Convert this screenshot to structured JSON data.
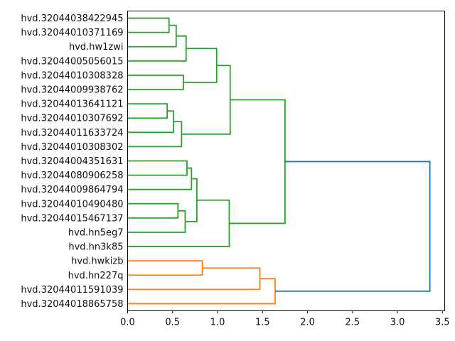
{
  "figure": {
    "background": "#ffffff",
    "title": ""
  },
  "chart_data": {
    "type": "dendrogram",
    "orientation": "horizontal, leaves on left, root on right",
    "title": "",
    "xlabel": "",
    "ylabel": "",
    "grid": false,
    "legend": null,
    "x_axis": {
      "tick_values": [
        0.0,
        0.5,
        1.0,
        1.5,
        2.0,
        2.5,
        3.0,
        3.5
      ],
      "tick_labels": [
        "0.0",
        "0.5",
        "1.0",
        "1.5",
        "2.0",
        "2.5",
        "3.0",
        "3.5"
      ],
      "range": [
        0.0,
        3.525
      ]
    },
    "colors": {
      "cluster_green": "#2ca02c",
      "cluster_orange": "#ff7f0e",
      "root_blue": "#1f77b4",
      "frame": "#000000",
      "text": "#111111"
    },
    "leaves": [
      "hvd.32044038422945",
      "hvd.32044010371169",
      "hvd.hw1zwi",
      "hvd.32044005056015",
      "hvd.32044010308328",
      "hvd.32044009938762",
      "hvd.32044013641121",
      "hvd.32044010307692",
      "hvd.32044011633724",
      "hvd.32044010308302",
      "hvd.32044004351631",
      "hvd.32044080906258",
      "hvd.32044009864794",
      "hvd.32044010490480",
      "hvd.32044015467137",
      "hvd.hn5eg7",
      "hvd.hn3k85",
      "hvd.hwkizb",
      "hvd.hn227q",
      "hvd.32044011591039",
      "hvd.32044018865758"
    ],
    "links": [
      {
        "id": "gA",
        "children": [
          "leaf-0",
          "leaf-1"
        ],
        "distance": 0.46,
        "color": "#2ca02c"
      },
      {
        "id": "gB",
        "children": [
          "gA",
          "leaf-2"
        ],
        "distance": 0.54,
        "color": "#2ca02c"
      },
      {
        "id": "gC",
        "children": [
          "gB",
          "leaf-3"
        ],
        "distance": 0.65,
        "color": "#2ca02c"
      },
      {
        "id": "gD",
        "children": [
          "leaf-4",
          "leaf-5"
        ],
        "distance": 0.62,
        "color": "#2ca02c"
      },
      {
        "id": "gE",
        "children": [
          "gC",
          "gD"
        ],
        "distance": 0.99,
        "color": "#2ca02c"
      },
      {
        "id": "gF",
        "children": [
          "leaf-6",
          "leaf-7"
        ],
        "distance": 0.44,
        "color": "#2ca02c"
      },
      {
        "id": "gG",
        "children": [
          "gF",
          "leaf-8"
        ],
        "distance": 0.51,
        "color": "#2ca02c"
      },
      {
        "id": "gH",
        "children": [
          "gG",
          "leaf-9"
        ],
        "distance": 0.6,
        "color": "#2ca02c"
      },
      {
        "id": "gI",
        "children": [
          "gE",
          "gH"
        ],
        "distance": 1.14,
        "color": "#2ca02c"
      },
      {
        "id": "gJ",
        "children": [
          "leaf-10",
          "leaf-11"
        ],
        "distance": 0.66,
        "color": "#2ca02c"
      },
      {
        "id": "gK",
        "children": [
          "gJ",
          "leaf-12"
        ],
        "distance": 0.71,
        "color": "#2ca02c"
      },
      {
        "id": "gL",
        "children": [
          "leaf-13",
          "leaf-14"
        ],
        "distance": 0.56,
        "color": "#2ca02c"
      },
      {
        "id": "gM",
        "children": [
          "gL",
          "leaf-15"
        ],
        "distance": 0.64,
        "color": "#2ca02c"
      },
      {
        "id": "gN",
        "children": [
          "gK",
          "gM"
        ],
        "distance": 0.77,
        "color": "#2ca02c"
      },
      {
        "id": "gO",
        "children": [
          "gN",
          "leaf-16"
        ],
        "distance": 1.13,
        "color": "#2ca02c"
      },
      {
        "id": "gP",
        "children": [
          "gI",
          "gO"
        ],
        "distance": 1.75,
        "color": "#2ca02c"
      },
      {
        "id": "oQ",
        "children": [
          "leaf-17",
          "leaf-18"
        ],
        "distance": 0.83,
        "color": "#ff7f0e"
      },
      {
        "id": "oR",
        "children": [
          "oQ",
          "leaf-19"
        ],
        "distance": 1.47,
        "color": "#ff7f0e"
      },
      {
        "id": "oS",
        "children": [
          "oR",
          "leaf-20"
        ],
        "distance": 1.64,
        "color": "#ff7f0e"
      },
      {
        "id": "root",
        "children": [
          "gP",
          "oS"
        ],
        "distance": 3.36,
        "color": "#1f77b4"
      }
    ]
  }
}
